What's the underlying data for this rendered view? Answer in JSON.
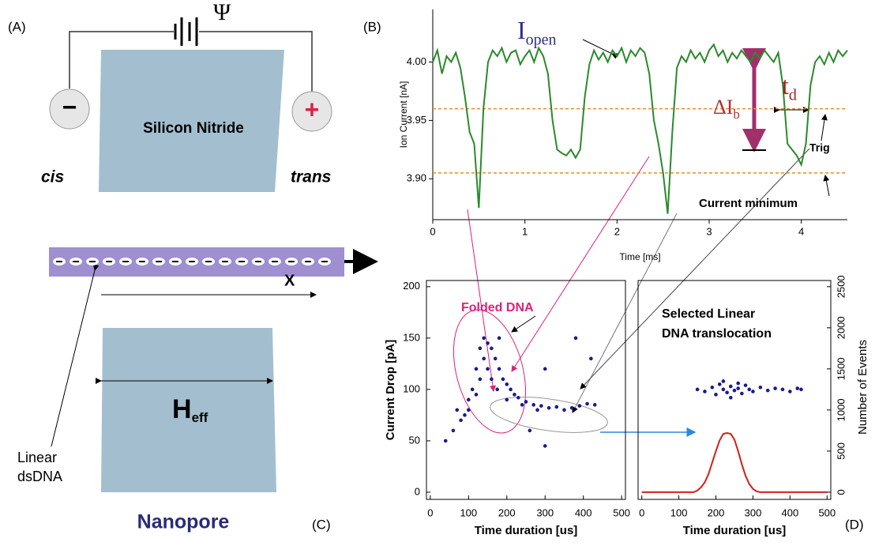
{
  "panels": {
    "a": "(A)",
    "b": "(B)",
    "c": "(C)",
    "d": "(D)"
  },
  "diagram": {
    "psi": "Ψ",
    "minus": "−",
    "plus": "+",
    "membrane": "Silicon Nitride",
    "cis": "cis",
    "trans": "trans",
    "axis": "X",
    "dna_label": [
      "Linear",
      "dsDNA"
    ],
    "h": "H",
    "h_sub": "eff",
    "nanopore": "Nanopore"
  },
  "chart_data": [
    {
      "type": "line",
      "x_label": "Time [ms]",
      "y_label": "Ion Current [nA]",
      "color": "#2a8a2a",
      "x": [
        0,
        0.05,
        0.1,
        0.15,
        0.2,
        0.25,
        0.3,
        0.35,
        0.4,
        0.45,
        0.5,
        0.55,
        0.6,
        0.65,
        0.7,
        0.75,
        0.8,
        0.85,
        0.9,
        0.95,
        1,
        1.05,
        1.1,
        1.15,
        1.2,
        1.25,
        1.3,
        1.35,
        1.4,
        1.45,
        1.5,
        1.55,
        1.6,
        1.65,
        1.7,
        1.75,
        1.8,
        1.85,
        1.9,
        1.95,
        2,
        2.05,
        2.1,
        2.15,
        2.2,
        2.25,
        2.3,
        2.35,
        2.4,
        2.45,
        2.5,
        2.55,
        2.6,
        2.65,
        2.7,
        2.75,
        2.8,
        2.85,
        2.9,
        2.95,
        3,
        3.05,
        3.1,
        3.15,
        3.2,
        3.25,
        3.3,
        3.35,
        3.4,
        3.45,
        3.5,
        3.55,
        3.6,
        3.65,
        3.7,
        3.75,
        3.8,
        3.85,
        3.9,
        3.95,
        4,
        4.05,
        4.1,
        4.15,
        4.2,
        4.25,
        4.3,
        4.35,
        4.4,
        4.45,
        4.5
      ],
      "values": [
        4.0,
        4.01,
        3.99,
        4.005,
        4.0,
        4.008,
        3.995,
        3.97,
        3.94,
        3.93,
        3.875,
        3.96,
        4.0,
        4.01,
        4.005,
        4.012,
        4.0,
        4.008,
        4.01,
        3.998,
        4.005,
        4.01,
        4.0,
        4.012,
        4.005,
        3.99,
        3.95,
        3.925,
        3.922,
        3.92,
        3.925,
        3.918,
        3.925,
        3.97,
        3.998,
        4.01,
        4.002,
        4.008,
        4.0,
        4.01,
        4.005,
        4.012,
        4.0,
        4.01,
        4.005,
        4.012,
        4.008,
        3.99,
        3.95,
        3.93,
        3.905,
        3.87,
        3.94,
        3.995,
        4.005,
        4.0,
        4.01,
        4.003,
        4.008,
        4.0,
        4.01,
        4.015,
        4.005,
        4.01,
        4.0,
        4.008,
        4.003,
        4.01,
        4.005,
        4.0,
        4.008,
        4.003,
        4.01,
        4.005,
        4.0,
        4.008,
        3.98,
        3.93,
        3.925,
        3.92,
        3.912,
        3.93,
        3.98,
        4.0,
        4.005,
        3.998,
        4.008,
        4.0,
        4.01,
        4.005,
        4.01
      ],
      "xlim": [
        0,
        4.5
      ],
      "xticks": [
        0,
        1,
        2,
        3,
        4
      ],
      "ylim": [
        3.865,
        4.045
      ],
      "yticks": [
        {
          "value": 3.9,
          "label": "3.90"
        },
        {
          "value": 3.95,
          "label": "3.95"
        },
        {
          "value": 4.0,
          "label": "4.00"
        }
      ],
      "hlines": [
        {
          "value": 3.96,
          "color": "#f08a24"
        },
        {
          "value": 3.905,
          "color": "#f08a24"
        }
      ],
      "annotations": {
        "i_open": {
          "text": "I",
          "sub": "open"
        },
        "delta": {
          "text": "ΔI",
          "sub": "b"
        },
        "td": {
          "text": "t",
          "sub": "d"
        },
        "trig": "Trig",
        "minimum": "Current minimum"
      }
    },
    {
      "type": "scatter",
      "x_label": "Time duration [us]",
      "y_label": "Current Drop [pA]",
      "annotation": "Folded DNA",
      "color": "#1a1a8c",
      "x": [
        40,
        60,
        80,
        100,
        110,
        120,
        130,
        140,
        150,
        160,
        170,
        180,
        190,
        200,
        210,
        220,
        230,
        250,
        270,
        290,
        310,
        330,
        350,
        370,
        390,
        410,
        430,
        150,
        160,
        175,
        140,
        130,
        120,
        100,
        90,
        200,
        240,
        280,
        300,
        260,
        420,
        380,
        70,
        180,
        300
      ],
      "y": [
        50,
        60,
        70,
        80,
        100,
        120,
        140,
        150,
        145,
        140,
        130,
        120,
        110,
        105,
        100,
        95,
        92,
        88,
        85,
        84,
        82,
        83,
        80,
        82,
        84,
        86,
        85,
        120,
        110,
        100,
        130,
        110,
        95,
        90,
        75,
        90,
        85,
        80,
        120,
        60,
        130,
        150,
        80,
        150,
        45
      ],
      "xlim": [
        -10,
        510
      ],
      "xticks": [
        0,
        100,
        200,
        300,
        400,
        500
      ],
      "ylim": [
        -7,
        206
      ],
      "yticks": [
        0,
        50,
        100,
        150,
        200
      ]
    },
    {
      "type": "scatter",
      "x_label": "Time duration [us]",
      "y2_label": "Number of Events",
      "title": [
        "Selected Linear",
        "DNA translocation"
      ],
      "color": "#1a1a8c",
      "x": [
        150,
        170,
        190,
        200,
        210,
        220,
        230,
        240,
        250,
        260,
        270,
        280,
        290,
        300,
        320,
        340,
        360,
        380,
        400,
        420,
        430,
        220,
        240,
        260
      ],
      "y": [
        100,
        98,
        102,
        95,
        105,
        100,
        97,
        103,
        99,
        101,
        96,
        104,
        100,
        98,
        102,
        99,
        101,
        100,
        98,
        101,
        100,
        108,
        92,
        106
      ],
      "xlim": [
        -10,
        510
      ],
      "xticks": [
        0,
        100,
        200,
        300,
        400,
        500
      ],
      "ylim": [
        -7,
        206
      ],
      "histogram": {
        "axis": "y2",
        "color": "#d0201a",
        "x": [
          0,
          10,
          20,
          30,
          40,
          50,
          60,
          70,
          80,
          90,
          100,
          110,
          120,
          130,
          140,
          150,
          160,
          170,
          180,
          190,
          200,
          210,
          220,
          230,
          240,
          250,
          260,
          270,
          280,
          290,
          300,
          310,
          320,
          330,
          340,
          350,
          360,
          370,
          380,
          390,
          400,
          410,
          420,
          430,
          440,
          450,
          460,
          470,
          480,
          490,
          500
        ],
        "values": [
          0,
          0,
          0,
          0,
          0,
          0,
          0,
          0,
          0,
          0,
          0,
          0,
          0,
          0,
          0,
          20,
          60,
          120,
          220,
          360,
          500,
          630,
          710,
          720,
          710,
          640,
          500,
          340,
          200,
          100,
          40,
          10,
          0,
          0,
          0,
          0,
          0,
          0,
          0,
          0,
          0,
          0,
          0,
          0,
          0,
          0,
          0,
          0,
          0,
          0,
          0
        ]
      },
      "y2lim": [
        -87.5,
        2575
      ],
      "y2ticks": [
        0,
        500,
        1000,
        1500,
        2000,
        2500
      ]
    }
  ]
}
